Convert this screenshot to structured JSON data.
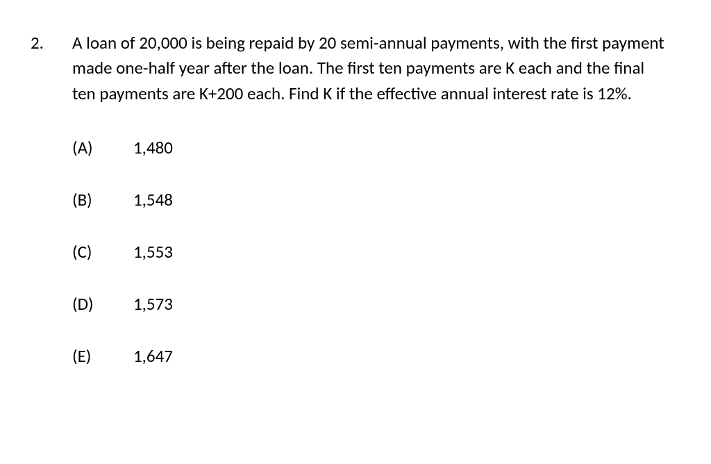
{
  "question": {
    "number": "2.",
    "text": "A loan of 20,000 is being repaid by 20 semi-annual payments, with the first payment made one-half year after the loan.  The first ten payments are K each and the final ten payments are K+200 each.  Find K if the effective annual interest rate is 12%.",
    "options": [
      {
        "label": "(A)",
        "value": "1,480"
      },
      {
        "label": "(B)",
        "value": "1,548"
      },
      {
        "label": "(C)",
        "value": "1,553"
      },
      {
        "label": "(D)",
        "value": "1,573"
      },
      {
        "label": "(E)",
        "value": "1,647"
      }
    ]
  },
  "styling": {
    "background_color": "#ffffff",
    "text_color": "#000000",
    "font_family": "Calibri, Arial, sans-serif",
    "font_size_pt": 19,
    "line_height": 1.45
  }
}
